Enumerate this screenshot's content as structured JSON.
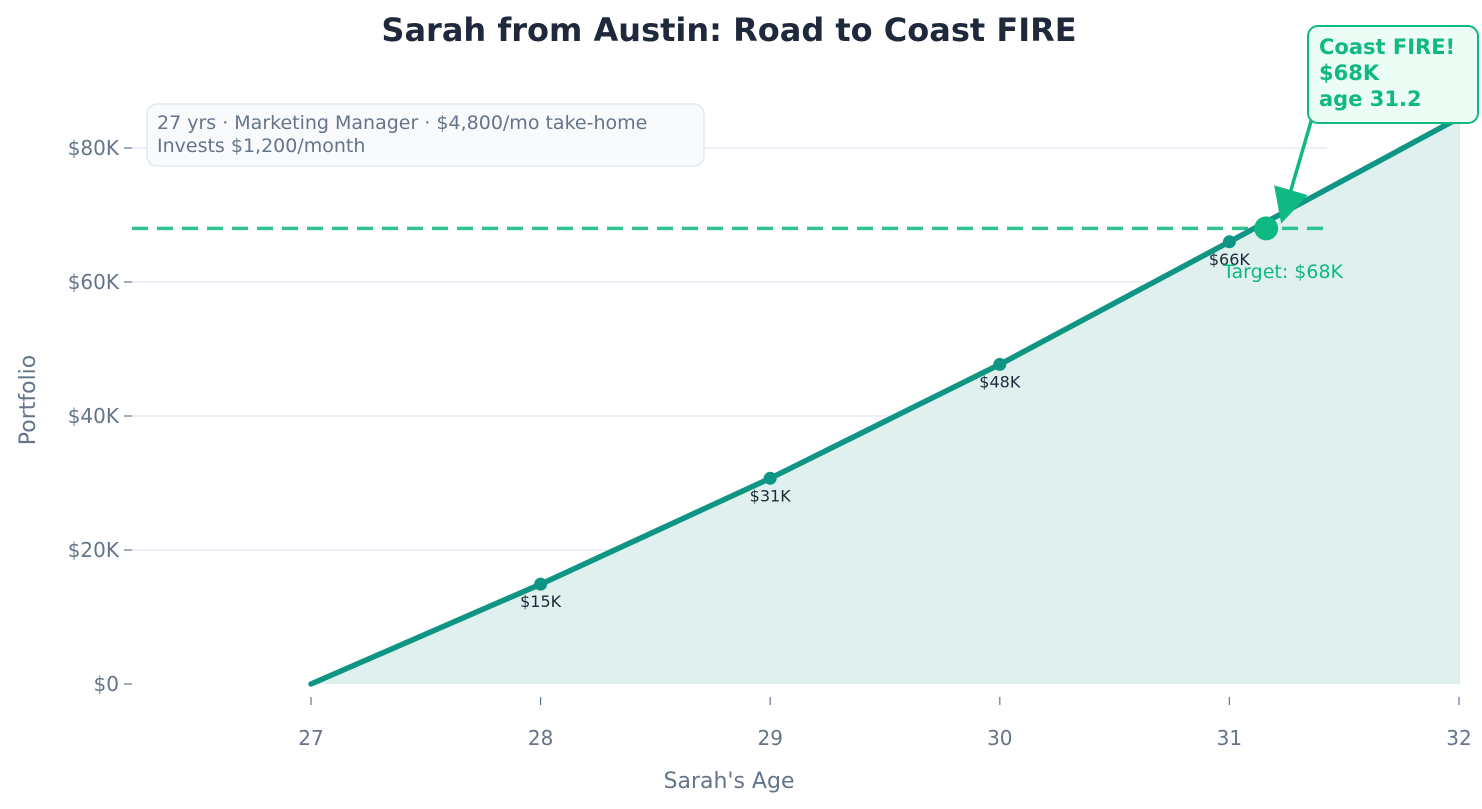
{
  "chart_data": {
    "type": "line",
    "title": "Sarah from Austin: Road to Coast FIRE",
    "xlabel": "Sarah's Age",
    "ylabel": "Portfolio",
    "xlim": [
      26.8,
      32.7
    ],
    "ylim": [
      -3500,
      90000
    ],
    "x_ticks": [
      27,
      28,
      29,
      30,
      31,
      32
    ],
    "y_ticks": [
      0,
      20000,
      40000,
      60000,
      80000
    ],
    "y_tick_labels": [
      "$0",
      "$20K",
      "$40K",
      "$60K",
      "$80K"
    ],
    "grid": "horizontal",
    "colors": {
      "line": "#0f9583",
      "fill": "#e0f0ee",
      "target": "#10b981",
      "callout_bg": "#ecfdf5"
    },
    "series": [
      {
        "x": [
          27,
          28,
          29,
          30,
          31,
          32
        ],
        "values": [
          0,
          14900,
          30700,
          47700,
          66000,
          84500
        ]
      }
    ],
    "markers": [
      {
        "x": 28,
        "y": 14900,
        "label": "$15K"
      },
      {
        "x": 29,
        "y": 30700,
        "label": "$31K"
      },
      {
        "x": 30,
        "y": 47700,
        "label": "$48K"
      },
      {
        "x": 31,
        "y": 66000,
        "label": "$66K"
      }
    ],
    "target": {
      "value": 68000,
      "label": "Target: $68K"
    },
    "milestone": {
      "x": 31.16,
      "y": 68000
    },
    "info_box": {
      "line1": "27 yrs · Marketing Manager · $4,800/mo take-home",
      "line2": "Invests $1,200/month"
    },
    "callout": {
      "line1": "Coast FIRE!",
      "line2": "$68K",
      "line3": "age 31.2"
    }
  }
}
